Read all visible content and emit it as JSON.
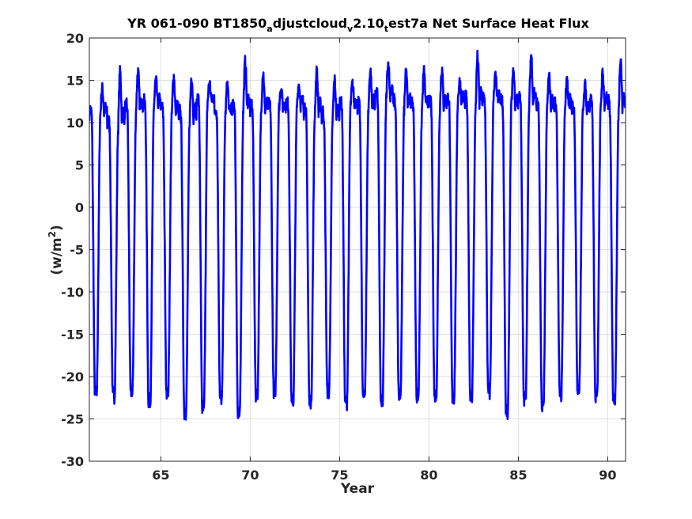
{
  "chart_data": {
    "type": "line",
    "title_parts": [
      {
        "text": "YR 061-090 BT1850",
        "sub": false
      },
      {
        "text": "a",
        "sub": true
      },
      {
        "text": "djustcloud",
        "sub": false
      },
      {
        "text": "v",
        "sub": true
      },
      {
        "text": "2.10",
        "sub": false
      },
      {
        "text": "t",
        "sub": true
      },
      {
        "text": "est7a Net Surface Heat Flux",
        "sub": false
      }
    ],
    "xlabel": "Year",
    "ylabel_base": "(w/m",
    "ylabel_sup": "2",
    "ylabel_end": ")",
    "xlim": [
      61,
      91
    ],
    "ylim": [
      -30,
      20
    ],
    "xticks": [
      65,
      70,
      75,
      80,
      85,
      90
    ],
    "yticks": [
      20,
      15,
      10,
      5,
      0,
      -5,
      -10,
      -15,
      -20,
      -25,
      -30
    ],
    "grid": true,
    "series": [
      {
        "color": "#0000ff",
        "samples_per_year": 73,
        "yearly_min": [
          -22.2,
          -22.5,
          -22.3,
          -23.3,
          -22.0,
          -24.5,
          -24.0,
          -23.0,
          -25.0,
          -22.4,
          -21.8,
          -23.3,
          -23.4,
          -22.0,
          -23.4,
          -22.7,
          -23.4,
          -22.6,
          -22.5,
          -22.7,
          -22.6,
          -22.5,
          -22.1,
          -24.7,
          -23.0,
          -23.8,
          -22.3,
          -21.7,
          -22.7,
          -23.0
        ],
        "yearly_max": [
          14.0,
          16.0,
          16.0,
          15.0,
          15.5,
          15.5,
          14.7,
          14.5,
          17.2,
          15.9,
          14.0,
          14.5,
          16.0,
          15.0,
          14.5,
          16.2,
          17.0,
          16.5,
          16.0,
          16.3,
          14.8,
          17.8,
          15.4,
          15.8,
          18.0,
          15.4,
          14.7,
          14.5,
          15.7,
          17.8
        ],
        "shoulder": [
          11.0,
          9.5,
          11.5,
          12.0,
          11.0,
          10.5,
          12.5,
          11.0,
          11.5,
          11.3,
          11.8,
          12.0,
          11.0,
          10.5,
          12.0,
          11.5,
          13.0,
          11.7,
          11.7,
          11.8,
          12.5,
          12.0,
          12.5,
          12.0,
          12.3,
          11.7,
          11.9,
          11.4,
          12.0,
          11.3
        ]
      }
    ]
  }
}
